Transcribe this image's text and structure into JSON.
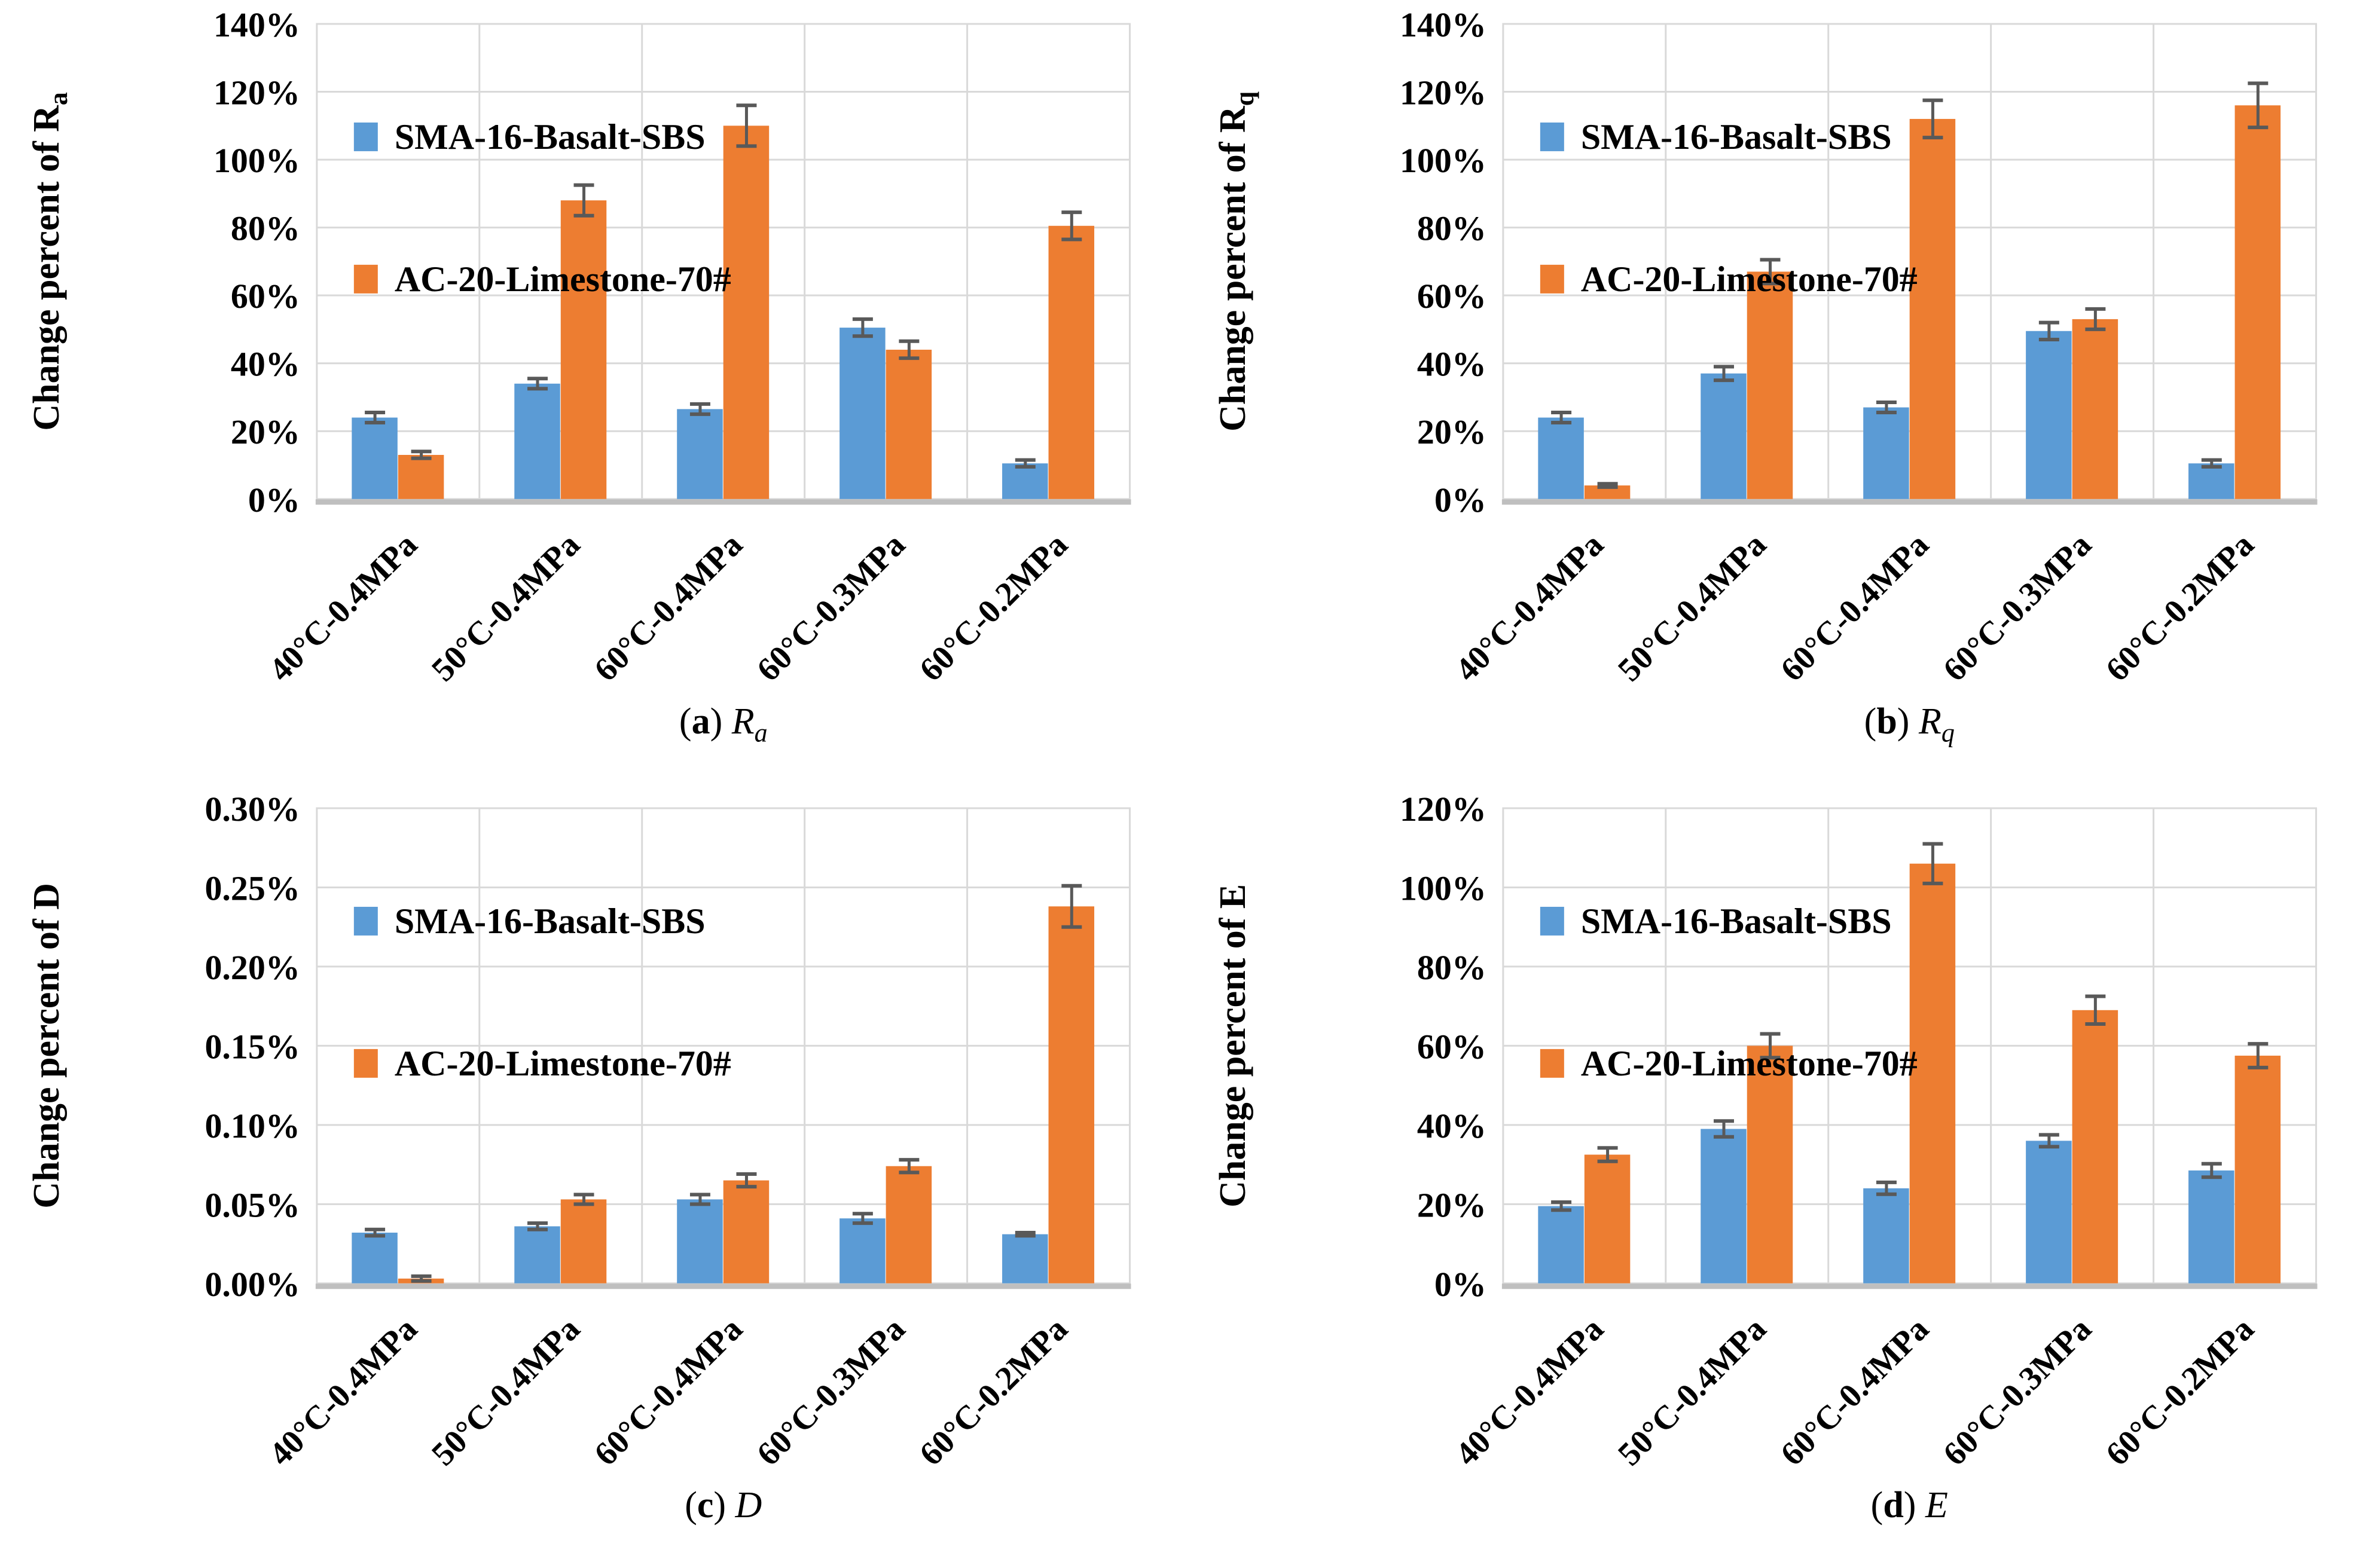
{
  "figure": {
    "background": "#ffffff",
    "legend_labels": [
      "SMA-16-Basalt-SBS",
      "AC-20-Limestone-70#"
    ],
    "colors": {
      "series_blue": "#5B9BD5",
      "series_orange": "#ED7D31",
      "error_bar": "#595959",
      "gridline": "#D9D9D9",
      "axis_line": "#BFBFBF",
      "text": "#000000"
    }
  },
  "chart_data": [
    {
      "type": "bar",
      "panel": "a",
      "caption": {
        "open": "(",
        "letter": "a",
        "close": ") ",
        "symbol": "R",
        "subscript": "a"
      },
      "ylabel": {
        "text": "Change percent of R",
        "subscript": "a"
      },
      "ylim": [
        0,
        140
      ],
      "yticks": {
        "step": 20,
        "labels": [
          "0%",
          "20%",
          "40%",
          "60%",
          "80%",
          "100%",
          "120%",
          "140%"
        ]
      },
      "grid": true,
      "legend_position": "top-left-inside",
      "categories": [
        "40°C-0.4MPa",
        "50°C-0.4MPa",
        "60°C-0.4MPa",
        "60°C-0.3MPa",
        "60°C-0.2MPa"
      ],
      "series": [
        {
          "name": "SMA-16-Basalt-SBS",
          "color": "#5B9BD5",
          "values": [
            24,
            34,
            26.5,
            50.5,
            10.5
          ],
          "errors": [
            1.5,
            1.5,
            1.5,
            2.5,
            1
          ]
        },
        {
          "name": "AC-20-Limestone-70#",
          "color": "#ED7D31",
          "values": [
            13,
            88,
            110,
            44,
            80.5
          ],
          "errors": [
            1,
            4.5,
            6,
            2.5,
            4
          ]
        }
      ]
    },
    {
      "type": "bar",
      "panel": "b",
      "caption": {
        "open": "(",
        "letter": "b",
        "close": ") ",
        "symbol": "R",
        "subscript": "q"
      },
      "ylabel": {
        "text": "Change percent of R",
        "subscript": "q"
      },
      "ylim": [
        0,
        140
      ],
      "yticks": {
        "step": 20,
        "labels": [
          "0%",
          "20%",
          "40%",
          "60%",
          "80%",
          "100%",
          "120%",
          "140%"
        ]
      },
      "grid": true,
      "legend_position": "top-left-inside",
      "categories": [
        "40°C-0.4MPa",
        "50°C-0.4MPa",
        "60°C-0.4MPa",
        "60°C-0.3MPa",
        "60°C-0.2MPa"
      ],
      "series": [
        {
          "name": "SMA-16-Basalt-SBS",
          "color": "#5B9BD5",
          "values": [
            24,
            37,
            27,
            49.5,
            10.5
          ],
          "errors": [
            1.5,
            2,
            1.5,
            2.5,
            1
          ]
        },
        {
          "name": "AC-20-Limestone-70#",
          "color": "#ED7D31",
          "values": [
            4,
            67,
            112,
            53,
            116
          ],
          "errors": [
            0.5,
            3.5,
            5.5,
            3,
            6.5
          ]
        }
      ]
    },
    {
      "type": "bar",
      "panel": "c",
      "caption": {
        "open": "(",
        "letter": "c",
        "close": ") ",
        "symbol": "D",
        "subscript": ""
      },
      "ylabel": {
        "text": "Change percent of D",
        "subscript": ""
      },
      "ylim": [
        0,
        0.3
      ],
      "yticks": {
        "step": 0.05,
        "labels": [
          "0.00%",
          "0.05%",
          "0.10%",
          "0.15%",
          "0.20%",
          "0.25%",
          "0.30%"
        ]
      },
      "grid": true,
      "legend_position": "top-left-inside",
      "categories": [
        "40°C-0.4MPa",
        "50°C-0.4MPa",
        "60°C-0.4MPa",
        "60°C-0.3MPa",
        "60°C-0.2MPa"
      ],
      "series": [
        {
          "name": "SMA-16-Basalt-SBS",
          "color": "#5B9BD5",
          "values": [
            0.032,
            0.036,
            0.053,
            0.041,
            0.031
          ],
          "errors": [
            0.002,
            0.002,
            0.003,
            0.003,
            0.001
          ]
        },
        {
          "name": "AC-20-Limestone-70#",
          "color": "#ED7D31",
          "values": [
            0.003,
            0.053,
            0.065,
            0.074,
            0.238
          ],
          "errors": [
            0.0015,
            0.003,
            0.004,
            0.004,
            0.013
          ]
        }
      ]
    },
    {
      "type": "bar",
      "panel": "d",
      "caption": {
        "open": "(",
        "letter": "d",
        "close": ") ",
        "symbol": "E",
        "subscript": ""
      },
      "ylabel": {
        "text": "Change percent of E",
        "subscript": ""
      },
      "ylim": [
        0,
        120
      ],
      "yticks": {
        "step": 20,
        "labels": [
          "0%",
          "20%",
          "40%",
          "60%",
          "80%",
          "100%",
          "120%"
        ]
      },
      "grid": true,
      "legend_position": "top-left-inside",
      "categories": [
        "40°C-0.4MPa",
        "50°C-0.4MPa",
        "60°C-0.4MPa",
        "60°C-0.3MPa",
        "60°C-0.2MPa"
      ],
      "series": [
        {
          "name": "SMA-16-Basalt-SBS",
          "color": "#5B9BD5",
          "values": [
            19.5,
            39,
            24,
            36,
            28.5
          ],
          "errors": [
            1,
            2,
            1.5,
            1.5,
            1.7
          ]
        },
        {
          "name": "AC-20-Limestone-70#",
          "color": "#ED7D31",
          "values": [
            32.5,
            60,
            106,
            69,
            57.5
          ],
          "errors": [
            1.7,
            3,
            5,
            3.5,
            3
          ]
        }
      ]
    }
  ]
}
